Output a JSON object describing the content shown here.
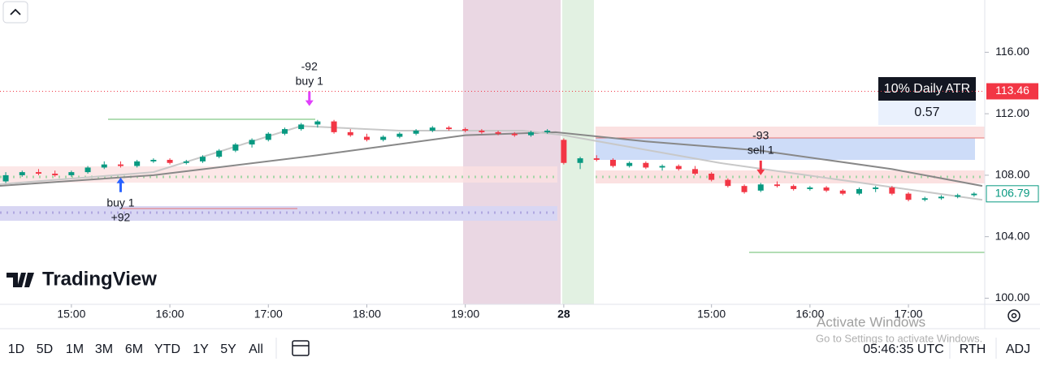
{
  "chart_data": {
    "type": "candlestick",
    "ylim": [
      99.6,
      119.4
    ],
    "yticks": [
      {
        "value": 100,
        "label": "100.00"
      },
      {
        "value": 104,
        "label": "104.00"
      },
      {
        "value": 108,
        "label": "108.00"
      },
      {
        "value": 112,
        "label": "112.00"
      },
      {
        "value": 116,
        "label": "116.00"
      }
    ],
    "xlim": [
      -8.7,
      111.3
    ],
    "xticks": [
      {
        "value": 0,
        "label": "15:00"
      },
      {
        "value": 12,
        "label": "16:00"
      },
      {
        "value": 24,
        "label": "17:00"
      },
      {
        "value": 36,
        "label": "18:00"
      },
      {
        "value": 48,
        "label": "19:00"
      },
      {
        "value": 60,
        "label": "28"
      },
      {
        "value": 78,
        "label": "15:00"
      },
      {
        "value": 90,
        "label": "16:00"
      },
      {
        "value": 102,
        "label": "17:00"
      }
    ],
    "up_color": "#089981",
    "down_color": "#f23645",
    "candles": [
      [
        -8,
        107.6,
        108.2,
        107.5,
        108.0
      ],
      [
        -6,
        108.0,
        108.3,
        107.9,
        108.2
      ],
      [
        -4,
        108.2,
        108.4,
        108.0,
        108.1
      ],
      [
        -2,
        108.1,
        108.3,
        107.9,
        108.0
      ],
      [
        0,
        108.0,
        108.3,
        107.9,
        108.2
      ],
      [
        2,
        108.2,
        108.6,
        108.1,
        108.5
      ],
      [
        4,
        108.5,
        108.9,
        108.4,
        108.7
      ],
      [
        6,
        108.7,
        108.9,
        108.5,
        108.6
      ],
      [
        8,
        108.6,
        109.0,
        108.5,
        108.9
      ],
      [
        10,
        108.9,
        109.1,
        108.8,
        109.0
      ],
      [
        12,
        109.0,
        109.1,
        108.7,
        108.8
      ],
      [
        14,
        108.8,
        109.0,
        108.7,
        108.9
      ],
      [
        16,
        108.9,
        109.3,
        108.8,
        109.2
      ],
      [
        18,
        109.2,
        109.7,
        109.1,
        109.6
      ],
      [
        20,
        109.6,
        110.1,
        109.5,
        110.0
      ],
      [
        22,
        110.0,
        110.4,
        109.8,
        110.3
      ],
      [
        24,
        110.3,
        110.8,
        110.2,
        110.7
      ],
      [
        26,
        110.7,
        111.1,
        110.6,
        111.0
      ],
      [
        28,
        111.0,
        111.4,
        110.9,
        111.3
      ],
      [
        30,
        111.3,
        111.6,
        111.1,
        111.5
      ],
      [
        32,
        111.5,
        111.6,
        110.7,
        110.8
      ],
      [
        34,
        110.8,
        111.0,
        110.5,
        110.6
      ],
      [
        36,
        110.5,
        110.7,
        110.2,
        110.3
      ],
      [
        38,
        110.3,
        110.6,
        110.2,
        110.5
      ],
      [
        40,
        110.5,
        110.8,
        110.4,
        110.7
      ],
      [
        42,
        110.7,
        111.0,
        110.6,
        110.9
      ],
      [
        44,
        110.9,
        111.2,
        110.8,
        111.1
      ],
      [
        46,
        111.1,
        111.2,
        110.9,
        111.0
      ],
      [
        48,
        111.0,
        111.1,
        110.8,
        110.9
      ],
      [
        50,
        110.9,
        111.0,
        110.7,
        110.8
      ],
      [
        52,
        110.8,
        110.9,
        110.6,
        110.7
      ],
      [
        54,
        110.7,
        110.8,
        110.5,
        110.6
      ],
      [
        56,
        110.6,
        110.9,
        110.5,
        110.8
      ],
      [
        58,
        110.8,
        111.0,
        110.7,
        110.9
      ],
      [
        60,
        110.3,
        110.4,
        108.7,
        108.8
      ],
      [
        62,
        108.8,
        109.2,
        108.4,
        109.1
      ],
      [
        64,
        109.1,
        109.3,
        108.9,
        109.0
      ],
      [
        66,
        109.0,
        109.1,
        108.5,
        108.6
      ],
      [
        68,
        108.6,
        108.9,
        108.5,
        108.8
      ],
      [
        70,
        108.8,
        108.9,
        108.4,
        108.5
      ],
      [
        72,
        108.5,
        108.7,
        108.3,
        108.6
      ],
      [
        74,
        108.6,
        108.7,
        108.3,
        108.4
      ],
      [
        76,
        108.4,
        108.6,
        108.0,
        108.1
      ],
      [
        78,
        108.1,
        108.2,
        107.6,
        107.7
      ],
      [
        80,
        107.7,
        107.8,
        107.2,
        107.3
      ],
      [
        82,
        107.3,
        107.4,
        106.8,
        106.9
      ],
      [
        84,
        107.0,
        107.5,
        106.9,
        107.4
      ],
      [
        86,
        107.4,
        107.6,
        107.2,
        107.3
      ],
      [
        88,
        107.3,
        107.4,
        107.0,
        107.1
      ],
      [
        90,
        107.1,
        107.3,
        107.0,
        107.2
      ],
      [
        92,
        107.2,
        107.3,
        106.9,
        107.0
      ],
      [
        94,
        107.0,
        107.1,
        106.7,
        106.8
      ],
      [
        96,
        106.8,
        107.2,
        106.7,
        107.1
      ],
      [
        98,
        107.1,
        107.3,
        106.9,
        107.2
      ],
      [
        100,
        107.2,
        107.3,
        106.7,
        106.8
      ],
      [
        102,
        106.8,
        106.9,
        106.3,
        106.4
      ],
      [
        104,
        106.4,
        106.6,
        106.3,
        106.5
      ],
      [
        106,
        106.5,
        106.7,
        106.4,
        106.6
      ],
      [
        108,
        106.6,
        106.8,
        106.5,
        106.7
      ],
      [
        110,
        106.7,
        106.9,
        106.6,
        106.8
      ]
    ],
    "moving_averages": [
      {
        "color": "#888888",
        "x": [
          -9,
          10,
          30,
          48,
          59,
          70,
          84,
          100,
          111
        ],
        "values": [
          107.3,
          108.0,
          109.3,
          110.6,
          110.8,
          110.2,
          109.6,
          108.4,
          107.3
        ]
      },
      {
        "color": "#c8c8c8",
        "x": [
          -9,
          10,
          28,
          40,
          55,
          60,
          79,
          95,
          111
        ],
        "values": [
          107.4,
          108.2,
          111.2,
          110.9,
          110.9,
          110.6,
          108.8,
          107.6,
          106.4
        ]
      }
    ],
    "trades": [
      {
        "x": 6,
        "price": 107.85,
        "color": "#2962ff",
        "side": "below",
        "labels": [
          "buy 1",
          "+92"
        ]
      },
      {
        "x": 29,
        "price": 112.5,
        "color": "#e040fb",
        "side": "above",
        "labels": [
          "-92",
          "buy 1"
        ]
      },
      {
        "x": 84,
        "price": 108.0,
        "color": "#f23645",
        "side": "above",
        "labels": [
          "-93",
          "sell 1"
        ]
      }
    ],
    "price_tags": [
      {
        "value": 113.46,
        "color": "#f23645"
      },
      {
        "value": 106.79,
        "color": "#089981"
      }
    ],
    "atr_box": {
      "title": "10% Daily ATR",
      "value": 0.57
    }
  },
  "logo": "TradingView",
  "toolbar": {
    "ranges": [
      "1D",
      "5D",
      "1M",
      "3M",
      "6M",
      "YTD",
      "1Y",
      "5Y",
      "All"
    ],
    "clock": "05:46:35 UTC",
    "session": "RTH",
    "adjust": "ADJ"
  },
  "watermark": {
    "title": "Activate Windows",
    "subtitle": "Go to Settings to activate Windows."
  }
}
